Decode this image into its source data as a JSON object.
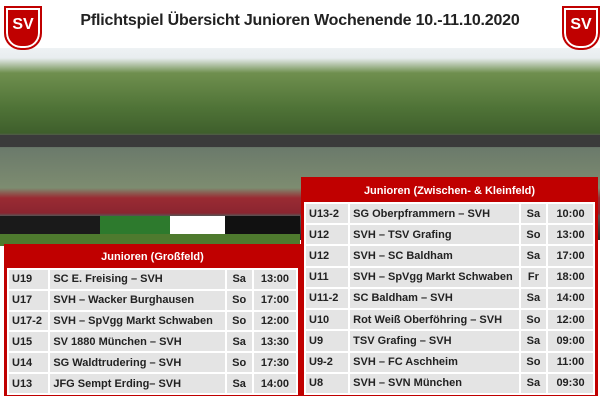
{
  "header": {
    "title": "Pflichtspiel Übersicht Junioren Wochenende 10.-11.10.2020",
    "logo_text": "SV"
  },
  "tables": [
    {
      "title": "Junioren (Großfeld)",
      "rows": [
        [
          "U19",
          "SC E. Freising – SVH",
          "Sa",
          "13:00"
        ],
        [
          "U17",
          "SVH – Wacker Burghausen",
          "So",
          "17:00"
        ],
        [
          "U17-2",
          "SVH – SpVgg Markt Schwaben",
          "So",
          "12:00"
        ],
        [
          "U15",
          "SV 1880 München – SVH",
          "Sa",
          "13:30"
        ],
        [
          "U14",
          "SG Waldtrudering – SVH",
          "So",
          "17:30"
        ],
        [
          "U13",
          "JFG Sempt Erding– SVH",
          "Sa",
          "14:00"
        ]
      ]
    },
    {
      "title": "Junioren (Zwischen- & Kleinfeld)",
      "rows": [
        [
          "U13-2",
          "SG Oberpframmern – SVH",
          "Sa",
          "10:00"
        ],
        [
          "U12",
          "SVH – TSV Grafing",
          "So",
          "13:00"
        ],
        [
          "U12",
          "SVH – SC Baldham",
          "Sa",
          "17:00"
        ],
        [
          "U11",
          "SVH – SpVgg Markt Schwaben",
          "Fr",
          "18:00"
        ],
        [
          "U11-2",
          "SC Baldham – SVH",
          "Sa",
          "14:00"
        ],
        [
          "U10",
          "Rot Weiß Oberföhring – SVH",
          "So",
          "12:00"
        ],
        [
          "U9",
          "TSV Grafing – SVH",
          "Sa",
          "09:00"
        ],
        [
          "U9-2",
          "SVH – FC Aschheim",
          "So",
          "11:00"
        ],
        [
          "U8",
          "SVH – SVN München",
          "Sa",
          "09:30"
        ]
      ]
    }
  ]
}
